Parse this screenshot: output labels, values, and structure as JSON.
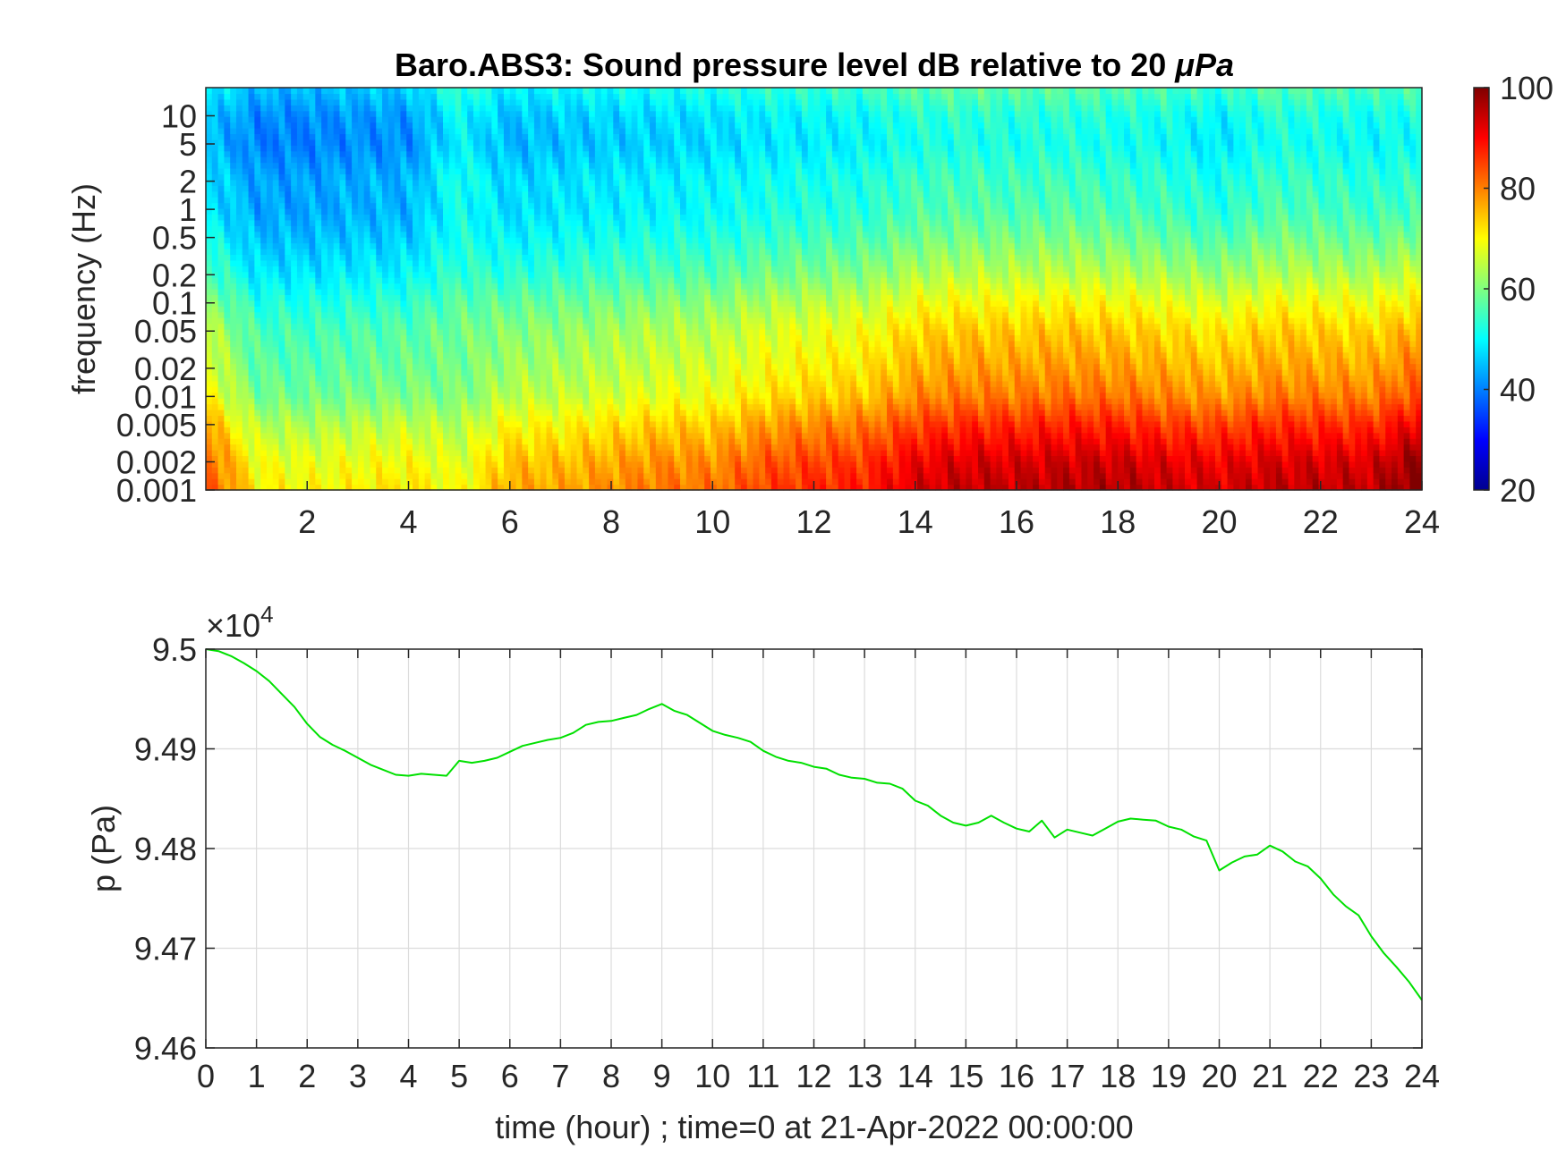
{
  "figure": {
    "title_text": "Baro.ABS3: Sound pressure level dB relative to 20 ",
    "title_unit": "μPa"
  },
  "chart_data": [
    {
      "type": "heatmap",
      "title": "Baro.ABS3: Sound pressure level dB relative to 20 μPa",
      "xlabel": "",
      "ylabel": "frequency (Hz)",
      "xlim": [
        0,
        24
      ],
      "x_ticks": [
        2,
        4,
        6,
        8,
        10,
        12,
        14,
        16,
        18,
        20,
        22,
        24
      ],
      "y_scale": "log",
      "ylim": [
        0.001,
        20
      ],
      "y_ticks": [
        0.001,
        0.002,
        0.005,
        0.01,
        0.02,
        0.05,
        0.1,
        0.2,
        0.5,
        1,
        2,
        5,
        10
      ],
      "y_tick_labels": [
        "0.001",
        "0.002",
        "0.005",
        "0.01",
        "0.02",
        "0.05",
        "0.1",
        "0.2",
        "0.5",
        "1",
        "2",
        "5",
        "10"
      ],
      "colorbar": {
        "colormap": "jet",
        "clim": [
          20,
          100
        ],
        "ticks": [
          20,
          40,
          60,
          80,
          100
        ]
      },
      "time_profile": {
        "x": [
          0,
          1,
          2,
          3,
          4,
          5,
          6,
          7,
          8,
          9,
          10,
          11,
          12,
          13,
          14,
          15,
          16,
          17,
          18,
          19,
          20,
          21,
          22,
          23,
          24
        ],
        "mid_band_level_db": [
          72,
          58,
          57,
          58,
          59,
          56,
          64,
          64,
          66,
          68,
          68,
          72,
          74,
          75,
          80,
          82,
          82,
          83,
          83,
          81,
          80,
          82,
          82,
          82,
          88
        ],
        "high_band_level_db": [
          45,
          36,
          36,
          38,
          38,
          52,
          43,
          45,
          46,
          47,
          48,
          50,
          51,
          52,
          56,
          57,
          56,
          57,
          55,
          54,
          50,
          56,
          55,
          53,
          55
        ]
      },
      "frequency_profile": {
        "frequency_hz": [
          0.001,
          0.002,
          0.005,
          0.01,
          0.02,
          0.05,
          0.1,
          0.2,
          0.5,
          1,
          2,
          5,
          10,
          20
        ],
        "level_db": [
          88,
          86,
          80,
          74,
          71,
          68,
          64,
          59,
          54,
          51,
          50,
          47,
          48,
          52
        ]
      }
    },
    {
      "type": "line",
      "xlabel": "time (hour) ; time=0 at 21-Apr-2022 00:00:00",
      "ylabel": "p (Pa)",
      "exponent_label": "×10",
      "exponent_power": "4",
      "xlim": [
        0,
        24
      ],
      "ylim": [
        9.46,
        9.5
      ],
      "x_ticks": [
        0,
        1,
        2,
        3,
        4,
        5,
        6,
        7,
        8,
        9,
        10,
        11,
        12,
        13,
        14,
        15,
        16,
        17,
        18,
        19,
        20,
        21,
        22,
        23,
        24
      ],
      "y_ticks": [
        9.46,
        9.47,
        9.48,
        9.49,
        9.5
      ],
      "y_tick_labels": [
        "9.46",
        "9.47",
        "9.48",
        "9.49",
        "9.5"
      ],
      "grid": true,
      "color": "#00e000",
      "series": [
        {
          "x": [
            0,
            0.25,
            0.5,
            0.75,
            1,
            1.25,
            1.5,
            1.75,
            2,
            2.25,
            2.5,
            2.75,
            3,
            3.25,
            3.5,
            3.75,
            4,
            4.25,
            4.5,
            4.75,
            5,
            5.25,
            5.5,
            5.75,
            6,
            6.25,
            6.5,
            6.75,
            7,
            7.25,
            7.5,
            7.75,
            8,
            8.25,
            8.5,
            8.75,
            9,
            9.25,
            9.5,
            9.75,
            10,
            10.25,
            10.5,
            10.75,
            11,
            11.25,
            11.5,
            11.75,
            12,
            12.25,
            12.5,
            12.75,
            13,
            13.25,
            13.5,
            13.75,
            14,
            14.25,
            14.5,
            14.75,
            15,
            15.25,
            15.5,
            15.75,
            16,
            16.25,
            16.5,
            16.75,
            17,
            17.25,
            17.5,
            17.75,
            18,
            18.25,
            18.5,
            18.75,
            19,
            19.25,
            19.5,
            19.75,
            20,
            20.25,
            20.5,
            20.75,
            21,
            21.25,
            21.5,
            21.75,
            22,
            22.25,
            22.5,
            22.75,
            23,
            23.25,
            23.5,
            23.75,
            24
          ],
          "y": [
            9.5,
            9.4998,
            9.4993,
            9.4986,
            9.4978,
            9.4968,
            9.4955,
            9.4942,
            9.4925,
            9.4912,
            9.4904,
            9.4898,
            9.4891,
            9.4884,
            9.4879,
            9.4874,
            9.4873,
            9.4875,
            9.4874,
            9.4873,
            9.4888,
            9.4886,
            9.4888,
            9.4891,
            9.4897,
            9.4903,
            9.4906,
            9.4909,
            9.4911,
            9.4916,
            9.4924,
            9.4927,
            9.4928,
            9.4931,
            9.4934,
            9.494,
            9.4945,
            9.4938,
            9.4934,
            9.4926,
            9.4918,
            9.4914,
            9.4911,
            9.4907,
            9.4898,
            9.4892,
            9.4888,
            9.4886,
            9.4882,
            9.488,
            9.4874,
            9.4871,
            9.487,
            9.4866,
            9.4865,
            9.486,
            9.4848,
            9.4843,
            9.4833,
            9.4826,
            9.4823,
            9.4826,
            9.4833,
            9.4826,
            9.482,
            9.4817,
            9.4828,
            9.4811,
            9.4819,
            9.4816,
            9.4813,
            9.482,
            9.4827,
            9.483,
            9.4829,
            9.4828,
            9.4822,
            9.4819,
            9.4812,
            9.4808,
            9.4778,
            9.4786,
            9.4792,
            9.4794,
            9.4803,
            9.4797,
            9.4787,
            9.4782,
            9.477,
            9.4754,
            9.4742,
            9.4733,
            9.4712,
            9.4695,
            9.4681,
            9.4666,
            9.4648
          ]
        }
      ]
    }
  ]
}
